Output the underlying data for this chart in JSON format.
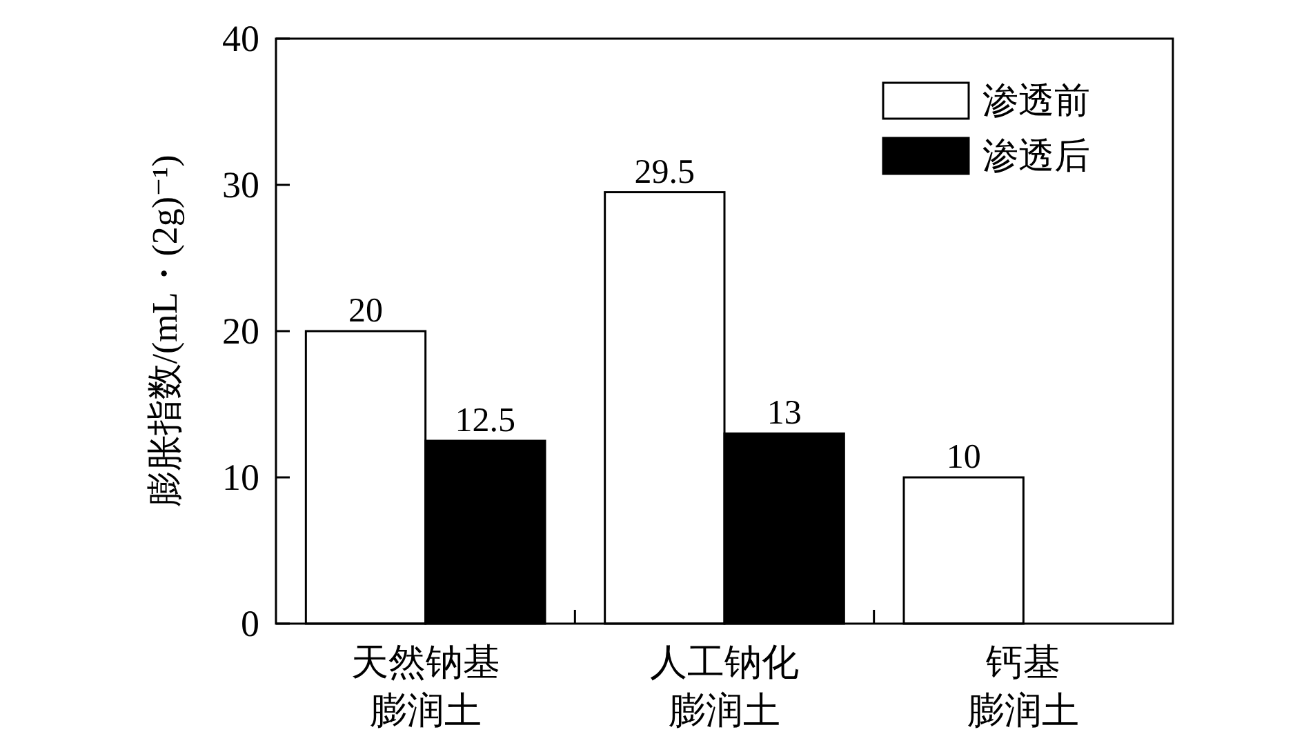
{
  "chart_data": {
    "type": "bar",
    "categories": [
      "天然钠基膨润土",
      "人工钠化膨润土",
      "钙基膨润土"
    ],
    "ylabel": "膨胀指数/(mL・(2g)⁻¹)",
    "series": [
      {
        "name": "渗透前",
        "color": "#ffffff",
        "values": [
          20,
          29.5,
          10
        ]
      },
      {
        "name": "渗透后",
        "color": "#000000",
        "values": [
          12.5,
          13,
          null
        ]
      }
    ],
    "ylim": [
      0,
      40
    ],
    "yticks": [
      0,
      10,
      20,
      30,
      40
    ],
    "data_labels": true,
    "legend": "top right"
  }
}
